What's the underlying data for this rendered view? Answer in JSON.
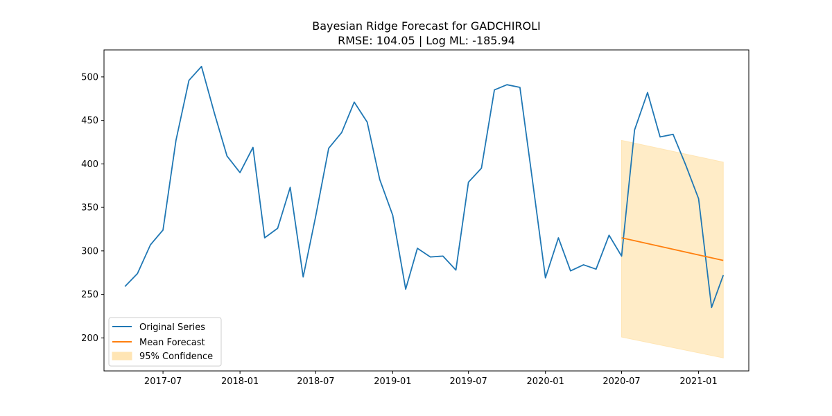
{
  "chart_data": {
    "type": "line",
    "title": "Bayesian Ridge Forecast for GADCHIROLI",
    "subtitle": "RMSE: 104.05 | Log ML: -185.94",
    "xlabel": "",
    "ylabel": "",
    "x_range": [
      "2017-02-10",
      "2021-05-01"
    ],
    "ylim": [
      162,
      531
    ],
    "x_ticks": [
      {
        "label": "2017-07",
        "date": "2017-07-01"
      },
      {
        "label": "2018-01",
        "date": "2018-01-01"
      },
      {
        "label": "2018-07",
        "date": "2018-07-01"
      },
      {
        "label": "2019-01",
        "date": "2019-01-01"
      },
      {
        "label": "2019-07",
        "date": "2019-07-01"
      },
      {
        "label": "2020-01",
        "date": "2020-01-01"
      },
      {
        "label": "2020-07",
        "date": "2020-07-01"
      },
      {
        "label": "2021-01",
        "date": "2021-01-01"
      }
    ],
    "y_ticks": [
      200,
      250,
      300,
      350,
      400,
      450,
      500
    ],
    "grid": false,
    "legend_position": "lower-left",
    "series": [
      {
        "name": "Original Series",
        "color": "#1f77b4",
        "points": [
          [
            "2017-04-01",
            259
          ],
          [
            "2017-05-01",
            274
          ],
          [
            "2017-06-01",
            307
          ],
          [
            "2017-07-01",
            324
          ],
          [
            "2017-08-01",
            427
          ],
          [
            "2017-09-01",
            496
          ],
          [
            "2017-10-01",
            512
          ],
          [
            "2017-11-01",
            458
          ],
          [
            "2017-12-01",
            409
          ],
          [
            "2018-01-01",
            390
          ],
          [
            "2018-02-01",
            419
          ],
          [
            "2018-03-01",
            315
          ],
          [
            "2018-04-01",
            326
          ],
          [
            "2018-05-01",
            373
          ],
          [
            "2018-06-01",
            270
          ],
          [
            "2018-07-01",
            340
          ],
          [
            "2018-08-01",
            418
          ],
          [
            "2018-09-01",
            436
          ],
          [
            "2018-10-01",
            471
          ],
          [
            "2018-11-01",
            448
          ],
          [
            "2018-12-01",
            382
          ],
          [
            "2019-01-01",
            341
          ],
          [
            "2019-02-01",
            256
          ],
          [
            "2019-03-01",
            303
          ],
          [
            "2019-04-01",
            293
          ],
          [
            "2019-05-01",
            294
          ],
          [
            "2019-06-01",
            278
          ],
          [
            "2019-07-01",
            379
          ],
          [
            "2019-08-01",
            395
          ],
          [
            "2019-09-01",
            485
          ],
          [
            "2019-10-01",
            491
          ],
          [
            "2019-11-01",
            488
          ],
          [
            "2019-12-01",
            381
          ],
          [
            "2020-01-01",
            269
          ],
          [
            "2020-02-01",
            315
          ],
          [
            "2020-03-01",
            277
          ],
          [
            "2020-04-01",
            284
          ],
          [
            "2020-05-01",
            279
          ],
          [
            "2020-06-01",
            318
          ],
          [
            "2020-07-01",
            294
          ],
          [
            "2020-08-01",
            439
          ],
          [
            "2020-09-01",
            482
          ],
          [
            "2020-10-01",
            431
          ],
          [
            "2020-11-01",
            434
          ],
          [
            "2020-12-01",
            399
          ],
          [
            "2021-01-01",
            360
          ],
          [
            "2021-02-01",
            235
          ],
          [
            "2021-03-01",
            272
          ]
        ]
      },
      {
        "name": "Mean Forecast",
        "color": "#ff7f0e",
        "points": [
          [
            "2020-07-01",
            315
          ],
          [
            "2021-03-01",
            289
          ]
        ]
      }
    ],
    "confidence_band": {
      "name": "95% Confidence",
      "color": "#ffe5b4",
      "x": [
        "2020-07-01",
        "2021-03-01"
      ],
      "lower": [
        201,
        177
      ],
      "upper": [
        427,
        402
      ]
    }
  }
}
